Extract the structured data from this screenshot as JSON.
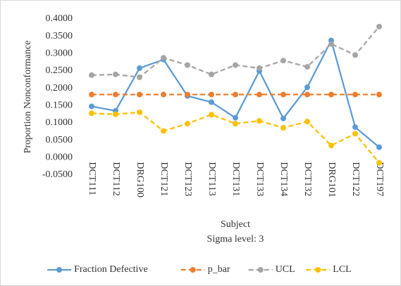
{
  "chart_data": {
    "type": "line",
    "x_label": "Subject",
    "subtitle": "Sigma level: 3",
    "y_label": "Proportion Nonconformance",
    "categories": [
      "DCT111",
      "DCT112",
      "DRG100",
      "DCT121",
      "DCT123",
      "DCT113",
      "DCT131",
      "DCT133",
      "DCT134",
      "DCT132",
      "DRG101",
      "DCT122",
      "DCT197"
    ],
    "series": [
      {
        "name": "Fraction Defective",
        "color": "#5b9bd5",
        "dashed": false,
        "values": [
          0.148,
          0.135,
          0.258,
          0.283,
          0.178,
          0.16,
          0.115,
          0.25,
          0.113,
          0.203,
          0.338,
          0.088,
          0.03
        ]
      },
      {
        "name": "p_bar",
        "color": "#ed7d31",
        "dashed": true,
        "values": [
          0.182,
          0.182,
          0.182,
          0.182,
          0.182,
          0.182,
          0.182,
          0.182,
          0.182,
          0.182,
          0.182,
          0.182,
          0.182
        ]
      },
      {
        "name": "UCL",
        "color": "#a5a5a5",
        "dashed": true,
        "values": [
          0.238,
          0.24,
          0.232,
          0.288,
          0.267,
          0.24,
          0.267,
          0.258,
          0.28,
          0.262,
          0.328,
          0.296,
          0.378
        ]
      },
      {
        "name": "LCL",
        "color": "#ffc000",
        "dashed": true,
        "values": [
          0.128,
          0.125,
          0.131,
          0.077,
          0.098,
          0.124,
          0.098,
          0.106,
          0.086,
          0.104,
          0.035,
          0.069,
          -0.015
        ]
      }
    ],
    "ylim": [
      -0.05,
      0.4
    ],
    "yticks": [
      {
        "value": -0.05,
        "label": "-0.0500"
      },
      {
        "value": 0,
        "label": "0.0000"
      },
      {
        "value": 0.05,
        "label": "0.0500"
      },
      {
        "value": 0.1,
        "label": "0.1000"
      },
      {
        "value": 0.15,
        "label": "0.1500"
      },
      {
        "value": 0.2,
        "label": "0.2000"
      },
      {
        "value": 0.25,
        "label": "0.2500"
      },
      {
        "value": 0.3,
        "label": "0.3000"
      },
      {
        "value": 0.35,
        "label": "0.3500"
      },
      {
        "value": 0.4,
        "label": "0.4000"
      }
    ],
    "grid": false,
    "legend": "bottom"
  }
}
